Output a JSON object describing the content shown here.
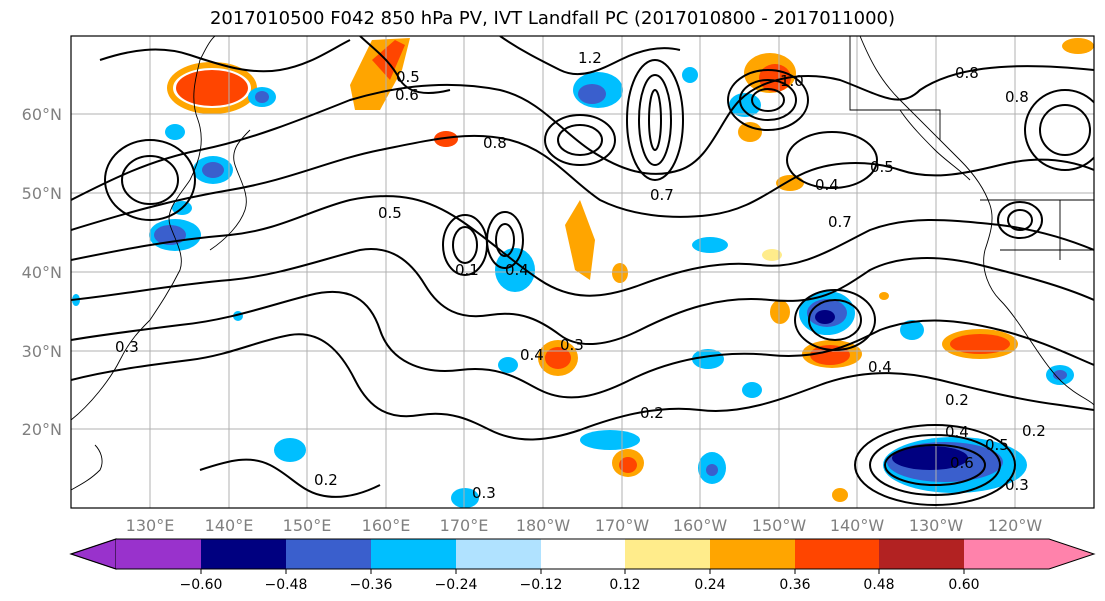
{
  "title": "2017010500 F042 850 hPa PV, IVT Landfall PC (2017010800 - 2017011000)",
  "lat_labels": [
    "60°N",
    "50°N",
    "40°N",
    "30°N",
    "20°N"
  ],
  "lon_labels": [
    "130°E",
    "140°E",
    "150°E",
    "160°E",
    "170°E",
    "180°W",
    "170°W",
    "160°W",
    "150°W",
    "140°W",
    "130°W",
    "120°W"
  ],
  "colorbar": {
    "ticks": [
      "−0.60",
      "−0.48",
      "−0.36",
      "−0.24",
      "−0.12",
      "0.12",
      "0.24",
      "0.36",
      "0.48",
      "0.60"
    ],
    "colors": [
      "#9932cc",
      "#000080",
      "#3a5fcd",
      "#00bfff",
      "#b0e2ff",
      "#ffffff",
      "#ffec8b",
      "#ffa500",
      "#ff4500",
      "#b22222",
      "#ff82ab"
    ]
  },
  "contour_labels": [
    "1.2",
    "0.5",
    "0.6",
    "0.8",
    "0.7",
    "0.8",
    "1.0",
    "0.4",
    "0.5",
    "0.7",
    "0.5",
    "0.8",
    "0.4",
    "0.3",
    "0.4",
    "0.3",
    "0.2",
    "0.4",
    "0.2",
    "0.2",
    "0.4",
    "0.5",
    "0.3",
    "0.2",
    "0.3",
    "0.6",
    "0.1"
  ]
}
